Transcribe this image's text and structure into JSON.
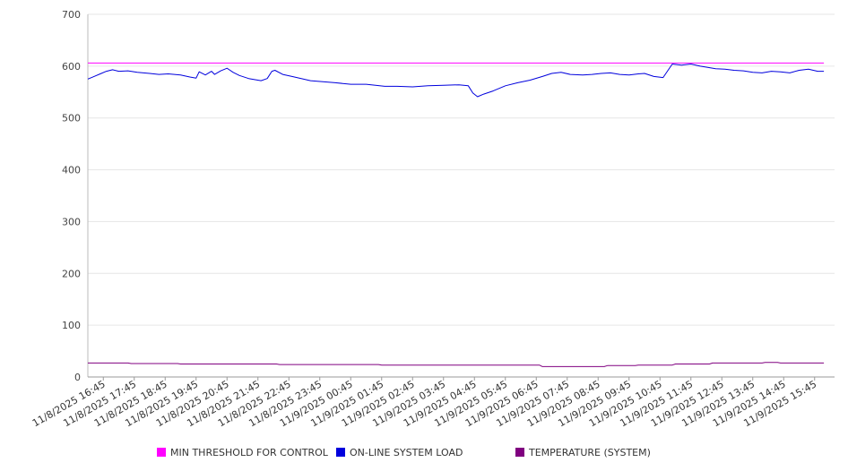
{
  "chart_data": {
    "type": "line",
    "title": "",
    "xlabel": "",
    "ylabel": "",
    "ylim": [
      0,
      700
    ],
    "yticks": [
      0,
      100,
      200,
      300,
      400,
      500,
      600,
      700
    ],
    "grid": true,
    "legend_position": "bottom",
    "x_tick_labels": [
      "11/8/2025 16:45",
      "11/8/2025 17:45",
      "11/8/2025 18:45",
      "11/8/2025 19:45",
      "11/8/2025 20:45",
      "11/8/2025 21:45",
      "11/8/2025 22:45",
      "11/8/2025 23:45",
      "11/9/2025 00:45",
      "11/9/2025 01:45",
      "11/9/2025 02:45",
      "11/9/2025 03:45",
      "11/9/2025 04:45",
      "11/9/2025 05:45",
      "11/9/2025 06:45",
      "11/9/2025 07:45",
      "11/9/2025 08:45",
      "11/9/2025 09:45",
      "11/9/2025 10:45",
      "11/9/2025 11:45",
      "11/9/2025 12:45",
      "11/9/2025 13:45",
      "11/9/2025 14:45",
      "11/9/2025 15:45"
    ],
    "series": [
      {
        "name": "MIN THRESHOLD FOR CONTROL",
        "color": "#ff00ff",
        "x": [
          0,
          23.8
        ],
        "values": [
          606,
          606
        ]
      },
      {
        "name": "ON-LINE SYSTEM LOAD",
        "color": "#0000dd",
        "x": [
          0,
          0.2,
          0.4,
          0.6,
          0.8,
          1.0,
          1.3,
          1.6,
          2.0,
          2.3,
          2.6,
          3.0,
          3.3,
          3.5,
          3.6,
          3.8,
          4.0,
          4.1,
          4.3,
          4.5,
          4.7,
          4.9,
          5.2,
          5.6,
          5.8,
          5.95,
          6.05,
          6.3,
          6.6,
          6.9,
          7.2,
          7.6,
          8.0,
          8.5,
          9.0,
          9.3,
          9.6,
          10.0,
          10.5,
          11.0,
          11.5,
          12.0,
          12.3,
          12.45,
          12.6,
          12.8,
          13.1,
          13.5,
          13.9,
          14.3,
          14.7,
          15.0,
          15.3,
          15.6,
          16.0,
          16.3,
          16.6,
          16.9,
          17.2,
          17.5,
          17.8,
          18.0,
          18.3,
          18.6,
          18.9,
          19.2,
          19.5,
          19.8,
          20.0,
          20.3,
          20.6,
          20.9,
          21.2,
          21.5,
          21.8,
          22.1,
          22.4,
          22.7,
          23.0,
          23.3,
          23.6,
          23.8
        ],
        "values": [
          575,
          580,
          585,
          590,
          593,
          590,
          591,
          588,
          586,
          584,
          585,
          583,
          579,
          577,
          589,
          583,
          590,
          584,
          591,
          596,
          588,
          582,
          576,
          572,
          576,
          590,
          592,
          584,
          580,
          576,
          572,
          570,
          568,
          565,
          565,
          563,
          561,
          561,
          560,
          562,
          563,
          564,
          562,
          548,
          541,
          546,
          552,
          562,
          568,
          573,
          580,
          586,
          588,
          584,
          583,
          584,
          586,
          587,
          584,
          583,
          585,
          586,
          580,
          578,
          604,
          602,
          604,
          600,
          598,
          595,
          594,
          592,
          591,
          588,
          587,
          590,
          589,
          587,
          592,
          594,
          590,
          590
        ]
      },
      {
        "name": "TEMPERATURE (SYSTEM)",
        "color": "#800080",
        "x": [
          0,
          1.3,
          1.4,
          2.9,
          3.0,
          6.1,
          6.2,
          9.4,
          9.5,
          14.6,
          14.7,
          16.7,
          16.8,
          17.7,
          17.8,
          18.9,
          19.0,
          20.1,
          20.2,
          21.8,
          21.9,
          22.3,
          22.4,
          23.8
        ],
        "values": [
          27,
          27,
          26,
          26,
          25,
          25,
          24,
          24,
          23,
          23,
          20,
          20,
          22,
          22,
          23,
          23,
          25,
          25,
          27,
          27,
          28,
          28,
          27,
          27
        ]
      }
    ]
  }
}
